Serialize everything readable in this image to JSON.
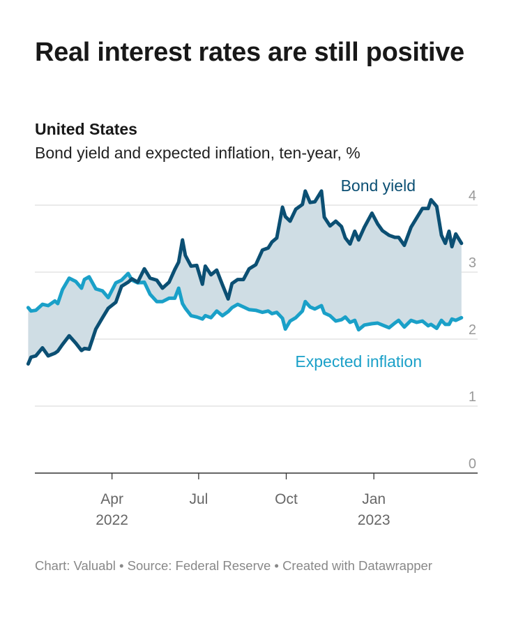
{
  "header": {
    "title": "Real interest rates are still positive",
    "subtitle_bold": "United States",
    "subtitle": "Bond yield and expected inflation, ten-year, %"
  },
  "footer": {
    "chart": "Chart: Valuabl",
    "source": "Source: Federal Reserve",
    "created": "Created with Datawrapper",
    "separator": " • "
  },
  "colors": {
    "bond_yield": "#0b4f73",
    "expected_inflation": "#1aa0c8",
    "fill": "#cfdde4",
    "grid": "#dddddd",
    "axis": "#333333",
    "tick_label": "#999999"
  },
  "chart_data": {
    "type": "line",
    "x_axis": {
      "ticks": [
        {
          "date": "2022-04-01",
          "label": "Apr",
          "year": "2022"
        },
        {
          "date": "2022-07-01",
          "label": "Jul",
          "year": ""
        },
        {
          "date": "2022-10-01",
          "label": "Oct",
          "year": ""
        },
        {
          "date": "2023-01-01",
          "label": "Jan",
          "year": "2023"
        }
      ],
      "range": [
        "2022-01-10",
        "2023-04-20"
      ]
    },
    "y_axis": {
      "range": [
        0,
        4
      ],
      "ticks": [
        0,
        1,
        2,
        3,
        4
      ],
      "position": "right",
      "grid": true
    },
    "area_between_series": true,
    "series": [
      {
        "name": "Bond yield",
        "label_position": "top-right",
        "points": [
          [
            "2022-01-03",
            1.63
          ],
          [
            "2022-01-06",
            1.73
          ],
          [
            "2022-01-11",
            1.75
          ],
          [
            "2022-01-18",
            1.87
          ],
          [
            "2022-01-24",
            1.75
          ],
          [
            "2022-01-31",
            1.79
          ],
          [
            "2022-02-03",
            1.82
          ],
          [
            "2022-02-08",
            1.92
          ],
          [
            "2022-02-15",
            2.05
          ],
          [
            "2022-02-22",
            1.94
          ],
          [
            "2022-02-28",
            1.83
          ],
          [
            "2022-03-03",
            1.86
          ],
          [
            "2022-03-08",
            1.85
          ],
          [
            "2022-03-15",
            2.15
          ],
          [
            "2022-03-22",
            2.32
          ],
          [
            "2022-03-28",
            2.46
          ],
          [
            "2022-04-05",
            2.55
          ],
          [
            "2022-04-11",
            2.79
          ],
          [
            "2022-04-18",
            2.85
          ],
          [
            "2022-04-22",
            2.9
          ],
          [
            "2022-04-28",
            2.85
          ],
          [
            "2022-05-05",
            3.05
          ],
          [
            "2022-05-11",
            2.91
          ],
          [
            "2022-05-18",
            2.88
          ],
          [
            "2022-05-24",
            2.76
          ],
          [
            "2022-05-31",
            2.85
          ],
          [
            "2022-06-06",
            3.04
          ],
          [
            "2022-06-10",
            3.15
          ],
          [
            "2022-06-14",
            3.48
          ],
          [
            "2022-06-17",
            3.25
          ],
          [
            "2022-06-23",
            3.09
          ],
          [
            "2022-06-29",
            3.1
          ],
          [
            "2022-07-05",
            2.82
          ],
          [
            "2022-07-08",
            3.09
          ],
          [
            "2022-07-14",
            2.96
          ],
          [
            "2022-07-20",
            3.03
          ],
          [
            "2022-07-26",
            2.81
          ],
          [
            "2022-08-01",
            2.6
          ],
          [
            "2022-08-05",
            2.83
          ],
          [
            "2022-08-11",
            2.89
          ],
          [
            "2022-08-17",
            2.89
          ],
          [
            "2022-08-23",
            3.05
          ],
          [
            "2022-08-30",
            3.11
          ],
          [
            "2022-09-06",
            3.33
          ],
          [
            "2022-09-12",
            3.36
          ],
          [
            "2022-09-16",
            3.45
          ],
          [
            "2022-09-21",
            3.51
          ],
          [
            "2022-09-27",
            3.97
          ],
          [
            "2022-09-30",
            3.83
          ],
          [
            "2022-10-05",
            3.76
          ],
          [
            "2022-10-11",
            3.94
          ],
          [
            "2022-10-18",
            4.01
          ],
          [
            "2022-10-21",
            4.21
          ],
          [
            "2022-10-26",
            4.04
          ],
          [
            "2022-10-31",
            4.05
          ],
          [
            "2022-11-07",
            4.21
          ],
          [
            "2022-11-10",
            3.82
          ],
          [
            "2022-11-16",
            3.69
          ],
          [
            "2022-11-22",
            3.76
          ],
          [
            "2022-11-28",
            3.68
          ],
          [
            "2022-12-02",
            3.51
          ],
          [
            "2022-12-07",
            3.42
          ],
          [
            "2022-12-12",
            3.61
          ],
          [
            "2022-12-16",
            3.48
          ],
          [
            "2022-12-22",
            3.67
          ],
          [
            "2022-12-30",
            3.88
          ],
          [
            "2023-01-05",
            3.72
          ],
          [
            "2023-01-10",
            3.62
          ],
          [
            "2023-01-17",
            3.55
          ],
          [
            "2023-01-23",
            3.52
          ],
          [
            "2023-01-27",
            3.52
          ],
          [
            "2023-02-02",
            3.4
          ],
          [
            "2023-02-09",
            3.67
          ],
          [
            "2023-02-15",
            3.81
          ],
          [
            "2023-02-21",
            3.95
          ],
          [
            "2023-02-27",
            3.95
          ],
          [
            "2023-03-02",
            4.08
          ],
          [
            "2023-03-08",
            3.98
          ],
          [
            "2023-03-13",
            3.55
          ],
          [
            "2023-03-17",
            3.43
          ],
          [
            "2023-03-21",
            3.61
          ],
          [
            "2023-03-24",
            3.38
          ],
          [
            "2023-03-28",
            3.57
          ],
          [
            "2023-04-03",
            3.43
          ]
        ]
      },
      {
        "name": "Expected inflation",
        "label_position": "bottom-right",
        "points": [
          [
            "2022-01-03",
            2.47
          ],
          [
            "2022-01-06",
            2.42
          ],
          [
            "2022-01-11",
            2.43
          ],
          [
            "2022-01-18",
            2.52
          ],
          [
            "2022-01-24",
            2.5
          ],
          [
            "2022-01-31",
            2.57
          ],
          [
            "2022-02-03",
            2.53
          ],
          [
            "2022-02-08",
            2.74
          ],
          [
            "2022-02-15",
            2.91
          ],
          [
            "2022-02-22",
            2.86
          ],
          [
            "2022-02-28",
            2.76
          ],
          [
            "2022-03-03",
            2.89
          ],
          [
            "2022-03-08",
            2.93
          ],
          [
            "2022-03-15",
            2.75
          ],
          [
            "2022-03-22",
            2.72
          ],
          [
            "2022-03-28",
            2.62
          ],
          [
            "2022-04-05",
            2.84
          ],
          [
            "2022-04-11",
            2.88
          ],
          [
            "2022-04-18",
            2.98
          ],
          [
            "2022-04-22",
            2.88
          ],
          [
            "2022-04-28",
            2.84
          ],
          [
            "2022-05-05",
            2.85
          ],
          [
            "2022-05-11",
            2.67
          ],
          [
            "2022-05-18",
            2.56
          ],
          [
            "2022-05-24",
            2.56
          ],
          [
            "2022-05-31",
            2.61
          ],
          [
            "2022-06-06",
            2.61
          ],
          [
            "2022-06-10",
            2.76
          ],
          [
            "2022-06-14",
            2.53
          ],
          [
            "2022-06-17",
            2.46
          ],
          [
            "2022-06-23",
            2.35
          ],
          [
            "2022-06-29",
            2.33
          ],
          [
            "2022-07-05",
            2.3
          ],
          [
            "2022-07-08",
            2.35
          ],
          [
            "2022-07-14",
            2.32
          ],
          [
            "2022-07-20",
            2.42
          ],
          [
            "2022-07-26",
            2.35
          ],
          [
            "2022-08-01",
            2.41
          ],
          [
            "2022-08-05",
            2.47
          ],
          [
            "2022-08-11",
            2.52
          ],
          [
            "2022-08-17",
            2.48
          ],
          [
            "2022-08-23",
            2.44
          ],
          [
            "2022-08-30",
            2.43
          ],
          [
            "2022-09-06",
            2.4
          ],
          [
            "2022-09-12",
            2.42
          ],
          [
            "2022-09-16",
            2.38
          ],
          [
            "2022-09-21",
            2.4
          ],
          [
            "2022-09-27",
            2.31
          ],
          [
            "2022-09-30",
            2.15
          ],
          [
            "2022-10-05",
            2.27
          ],
          [
            "2022-10-11",
            2.32
          ],
          [
            "2022-10-18",
            2.42
          ],
          [
            "2022-10-21",
            2.56
          ],
          [
            "2022-10-26",
            2.48
          ],
          [
            "2022-10-31",
            2.45
          ],
          [
            "2022-11-07",
            2.5
          ],
          [
            "2022-11-10",
            2.39
          ],
          [
            "2022-11-16",
            2.35
          ],
          [
            "2022-11-22",
            2.27
          ],
          [
            "2022-11-28",
            2.29
          ],
          [
            "2022-12-02",
            2.33
          ],
          [
            "2022-12-07",
            2.25
          ],
          [
            "2022-12-12",
            2.28
          ],
          [
            "2022-12-16",
            2.14
          ],
          [
            "2022-12-22",
            2.21
          ],
          [
            "2022-12-30",
            2.23
          ],
          [
            "2023-01-05",
            2.24
          ],
          [
            "2023-01-10",
            2.21
          ],
          [
            "2023-01-17",
            2.17
          ],
          [
            "2023-01-23",
            2.24
          ],
          [
            "2023-01-27",
            2.28
          ],
          [
            "2023-02-02",
            2.18
          ],
          [
            "2023-02-09",
            2.28
          ],
          [
            "2023-02-15",
            2.25
          ],
          [
            "2023-02-21",
            2.27
          ],
          [
            "2023-02-27",
            2.2
          ],
          [
            "2023-03-02",
            2.22
          ],
          [
            "2023-03-08",
            2.16
          ],
          [
            "2023-03-13",
            2.28
          ],
          [
            "2023-03-17",
            2.22
          ],
          [
            "2023-03-21",
            2.22
          ],
          [
            "2023-03-24",
            2.3
          ],
          [
            "2023-03-28",
            2.28
          ],
          [
            "2023-04-03",
            2.32
          ]
        ]
      }
    ]
  }
}
